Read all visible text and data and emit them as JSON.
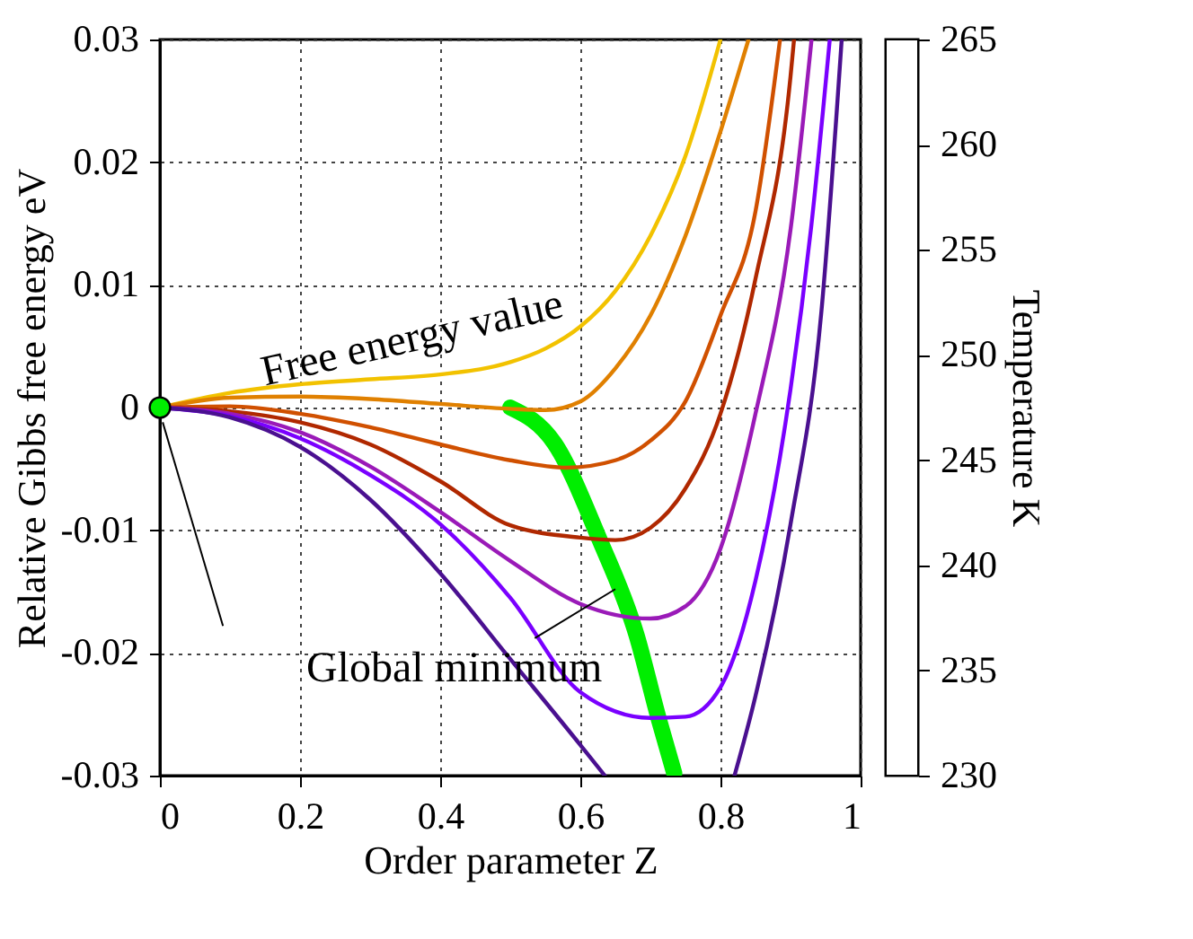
{
  "chart_data": {
    "type": "line",
    "xlabel": "Order parameter Z",
    "ylabel": "Relative Gibbs free energy eV",
    "y2label": "Temperature K",
    "y2lim": [
      230,
      265
    ],
    "y2ticks": [
      230,
      235,
      240,
      245,
      250,
      255,
      260,
      265
    ],
    "xlim": [
      0,
      1
    ],
    "ylim": [
      -0.03,
      0.03
    ],
    "xticks": [
      0,
      0.2,
      0.4,
      0.6,
      0.8,
      1
    ],
    "yticks": [
      -0.03,
      -0.02,
      -0.01,
      0,
      0.01,
      0.02,
      0.03
    ],
    "grid": true,
    "line_style": "solid",
    "annotations": [
      "Free energy value",
      "Global minimum"
    ],
    "series": [
      {
        "color": "#f2c200",
        "x": [
          0,
          0.1,
          0.2,
          0.3,
          0.4,
          0.5,
          0.55,
          0.6,
          0.65,
          0.7,
          0.75,
          0.8
        ],
        "values": [
          0,
          0.0012,
          0.0019,
          0.0023,
          0.0027,
          0.0037,
          0.0048,
          0.0066,
          0.0095,
          0.014,
          0.0205,
          0.03
        ]
      },
      {
        "color": "#e08000",
        "x": [
          0,
          0.1,
          0.2,
          0.3,
          0.4,
          0.5,
          0.55,
          0.6,
          0.65,
          0.7,
          0.75,
          0.8,
          0.84
        ],
        "values": [
          0,
          0.0008,
          0.0009,
          0.0007,
          0.0003,
          -0.0001,
          -0.0002,
          0.0005,
          0.0032,
          0.0075,
          0.014,
          0.0225,
          0.03
        ]
      },
      {
        "color": "#d05000",
        "x": [
          0,
          0.1,
          0.2,
          0.3,
          0.4,
          0.5,
          0.58,
          0.65,
          0.7,
          0.75,
          0.8,
          0.85,
          0.885
        ],
        "values": [
          0,
          0.0001,
          -0.0005,
          -0.0016,
          -0.003,
          -0.0043,
          -0.0049,
          -0.0043,
          -0.0027,
          0.0005,
          0.0075,
          0.016,
          0.03
        ]
      },
      {
        "color": "#b02800",
        "x": [
          0,
          0.1,
          0.2,
          0.3,
          0.4,
          0.5,
          0.6,
          0.65,
          0.7,
          0.75,
          0.8,
          0.85,
          0.9,
          0.905
        ],
        "values": [
          0,
          -0.0003,
          -0.0012,
          -0.003,
          -0.006,
          -0.0096,
          -0.0106,
          -0.0108,
          -0.0098,
          -0.0066,
          -0.0005,
          0.0105,
          0.027,
          0.03
        ]
      },
      {
        "color": "#9a1ab8",
        "x": [
          0,
          0.1,
          0.2,
          0.3,
          0.4,
          0.5,
          0.6,
          0.7,
          0.75,
          0.8,
          0.85,
          0.9,
          0.93
        ],
        "values": [
          0,
          -0.0005,
          -0.002,
          -0.0048,
          -0.0085,
          -0.0125,
          -0.016,
          -0.0172,
          -0.0162,
          -0.0115,
          -0.0005,
          0.0145,
          0.03
        ]
      },
      {
        "color": "#7a00ff",
        "x": [
          0,
          0.1,
          0.2,
          0.3,
          0.4,
          0.5,
          0.6,
          0.7,
          0.75,
          0.8,
          0.85,
          0.9,
          0.93,
          0.956
        ],
        "values": [
          0,
          -0.0007,
          -0.0025,
          -0.0055,
          -0.0095,
          -0.0155,
          -0.0232,
          -0.0253,
          -0.0252,
          -0.0228,
          -0.0141,
          0.0015,
          0.015,
          0.03
        ]
      },
      {
        "color": "#4a1090",
        "x": [
          0,
          0.1,
          0.2,
          0.3,
          0.4,
          0.5,
          0.6,
          0.635,
          0.72,
          0.82,
          0.85,
          0.9,
          0.944,
          0.973
        ],
        "values": [
          0,
          -0.0008,
          -0.0032,
          -0.0075,
          -0.0135,
          -0.0205,
          -0.0275,
          -0.03,
          null,
          -0.03,
          -0.0235,
          -0.0095,
          0.0078,
          0.03
        ]
      },
      {
        "color": "#00ee00",
        "x": [
          0.5,
          0.563,
          0.627,
          0.68,
          0.712,
          0.734
        ],
        "values": [
          0,
          -0.0029,
          -0.0107,
          -0.0185,
          -0.0254,
          -0.0298
        ]
      },
      {
        "type": "scatter",
        "marker": "circle",
        "color": "#00ee00",
        "x": [
          0
        ],
        "values": [
          0
        ]
      }
    ]
  }
}
